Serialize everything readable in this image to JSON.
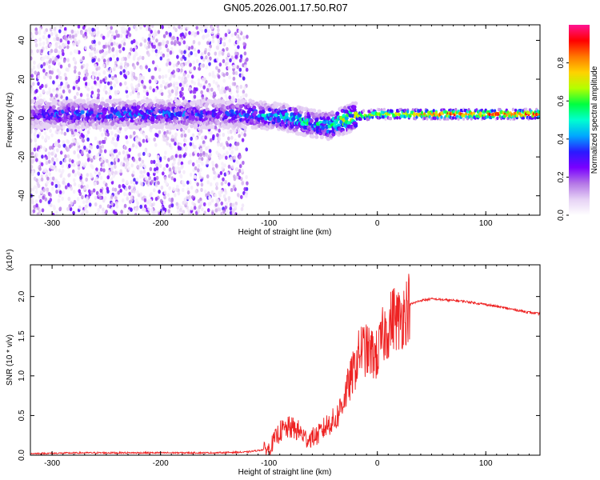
{
  "figure_title": "GN05.2026.001.17.50.R07",
  "chart_data": [
    {
      "type": "heatmap",
      "name": "spectrogram",
      "xlabel": "Height of straight line (km)",
      "ylabel": "Frequency (Hz)",
      "xlim": [
        -320,
        150
      ],
      "ylim": [
        -50,
        48
      ],
      "xticks": [
        -300,
        -200,
        -100,
        0,
        100
      ],
      "yticks": [
        -40,
        -20,
        0,
        20,
        40
      ],
      "colorbar": {
        "label": "Normalized spectral amplitude",
        "range": [
          0,
          1
        ],
        "ticks": [
          0.0,
          0.2,
          0.4,
          0.6,
          0.8
        ],
        "colormap": [
          "#ffffff",
          "#e6d2f5",
          "#b477e6",
          "#7a00ff",
          "#2a1aff",
          "#00a8ff",
          "#00ffd0",
          "#00ff40",
          "#b4ff00",
          "#ffd200",
          "#ff7800",
          "#ff0000",
          "#ff1493"
        ]
      },
      "signal_band": {
        "center_frequency_hz": [
          [
            -320,
            2
          ],
          [
            -240,
            2
          ],
          [
            -160,
            2
          ],
          [
            -115,
            2
          ],
          [
            -100,
            1
          ],
          [
            -80,
            0
          ],
          [
            -60,
            -3
          ],
          [
            -45,
            -4
          ],
          [
            -35,
            -2
          ],
          [
            -20,
            1
          ],
          [
            0,
            2
          ],
          [
            50,
            2
          ],
          [
            150,
            2
          ]
        ],
        "peak_amplitude": [
          [
            -320,
            0.3
          ],
          [
            -280,
            0.4
          ],
          [
            -200,
            0.4
          ],
          [
            -150,
            0.35
          ],
          [
            -110,
            0.45
          ],
          [
            -80,
            0.55
          ],
          [
            -50,
            0.5
          ],
          [
            -30,
            0.75
          ],
          [
            0,
            0.7
          ],
          [
            30,
            0.85
          ],
          [
            60,
            0.98
          ],
          [
            150,
            0.98
          ]
        ],
        "noise_extent_km": [
          -320,
          -120
        ]
      }
    },
    {
      "type": "line",
      "name": "snr",
      "xlabel": "Height of straight line (km)",
      "ylabel": "SNR (10 * v/v)",
      "y_multiplier": "(x10⁴)",
      "xlim": [
        -320,
        150
      ],
      "ylim": [
        0,
        2.4
      ],
      "xticks": [
        -300,
        -200,
        -100,
        0,
        100
      ],
      "yticks": [
        0.0,
        0.5,
        1.0,
        1.5,
        2.0
      ],
      "series": [
        {
          "name": "SNR",
          "color": "#ee2222",
          "points": [
            [
              -320,
              0.02
            ],
            [
              -270,
              0.03
            ],
            [
              -200,
              0.03
            ],
            [
              -150,
              0.03
            ],
            [
              -120,
              0.04
            ],
            [
              -100,
              0.08
            ],
            [
              -90,
              0.3
            ],
            [
              -80,
              0.35
            ],
            [
              -72,
              0.3
            ],
            [
              -65,
              0.2
            ],
            [
              -55,
              0.25
            ],
            [
              -45,
              0.4
            ],
            [
              -38,
              0.45
            ],
            [
              -30,
              0.75
            ],
            [
              -22,
              1.05
            ],
            [
              -15,
              1.35
            ],
            [
              -8,
              1.3
            ],
            [
              0,
              1.25
            ],
            [
              5,
              1.5
            ],
            [
              10,
              1.6
            ],
            [
              15,
              1.75
            ],
            [
              20,
              1.7
            ],
            [
              25,
              1.8
            ],
            [
              30,
              1.9
            ],
            [
              40,
              1.95
            ],
            [
              50,
              1.97
            ],
            [
              60,
              1.96
            ],
            [
              80,
              1.94
            ],
            [
              100,
              1.9
            ],
            [
              120,
              1.85
            ],
            [
              140,
              1.8
            ],
            [
              150,
              1.78
            ]
          ]
        }
      ]
    }
  ]
}
